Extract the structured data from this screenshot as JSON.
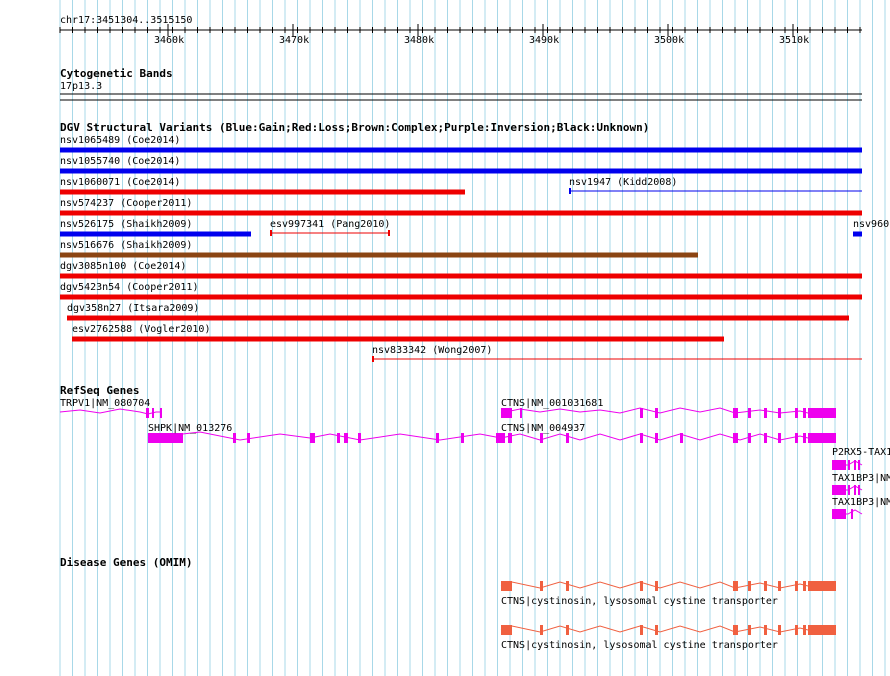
{
  "ruler": {
    "position": "chr17:3451304..3515150",
    "ticks": [
      "3460k",
      "3470k",
      "3480k",
      "3490k",
      "3500k",
      "3510k"
    ]
  },
  "cytoband": {
    "title": "Cytogenetic Bands",
    "band": "17p13.3"
  },
  "dgv": {
    "title": "DGV Structural Variants (Blue:Gain;Red:Loss;Brown:Complex;Purple:Inversion;Black:Unknown)",
    "colors": {
      "gain": "#0000ee",
      "loss": "#ee0000",
      "complex": "#8b4513"
    },
    "variants": [
      {
        "label": "nsv1065489 (Coe2014)",
        "type": "gain"
      },
      {
        "label": "nsv1055740 (Coe2014)",
        "type": "gain"
      },
      {
        "label": "nsv1060071 (Coe2014)",
        "type": "loss"
      },
      {
        "label": "nsv1947 (Kidd2008)",
        "type": "gain"
      },
      {
        "label": "nsv574237 (Cooper2011)",
        "type": "loss"
      },
      {
        "label": "nsv526175 (Shaikh2009)",
        "type": "gain"
      },
      {
        "label": "esv997341 (Pang2010)",
        "type": "loss"
      },
      {
        "label": "nsv960",
        "type": "gain"
      },
      {
        "label": "nsv516676 (Shaikh2009)",
        "type": "complex"
      },
      {
        "label": "dgv3085n100 (Coe2014)",
        "type": "loss"
      },
      {
        "label": "dgv5423n54 (Cooper2011)",
        "type": "loss"
      },
      {
        "label": "dgv358n27 (Itsara2009)",
        "type": "loss"
      },
      {
        "label": "esv2762588 (Vogler2010)",
        "type": "loss"
      },
      {
        "label": "nsv833342 (Wong2007)",
        "type": "loss"
      }
    ]
  },
  "refseq": {
    "title": "RefSeq Genes",
    "color": "#ee00ee",
    "genes": [
      {
        "label": "TRPV1|NM_080704"
      },
      {
        "label": "CTNS|NM_001031681"
      },
      {
        "label": "SHPK|NM_013276"
      },
      {
        "label": "CTNS|NM_004937"
      },
      {
        "label": "P2RX5-TAX1"
      },
      {
        "label": "TAX1BP3|NM"
      },
      {
        "label": "TAX1BP3|NM"
      }
    ]
  },
  "omim": {
    "title": "Disease Genes (OMIM)",
    "color": "#f06040",
    "genes": [
      {
        "label": "CTNS|cystinosin, lysosomal cystine transporter"
      },
      {
        "label": "CTNS|cystinosin, lysosomal cystine transporter"
      }
    ]
  }
}
